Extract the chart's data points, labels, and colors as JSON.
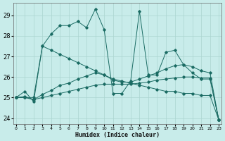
{
  "xlabel": "Humidex (Indice chaleur)",
  "xlim": [
    -0.3,
    23.3
  ],
  "ylim": [
    23.7,
    29.6
  ],
  "yticks": [
    24,
    25,
    26,
    27,
    28,
    29
  ],
  "xticks": [
    0,
    1,
    2,
    3,
    4,
    5,
    6,
    7,
    8,
    9,
    10,
    11,
    12,
    13,
    14,
    15,
    16,
    17,
    18,
    19,
    20,
    21,
    22,
    23
  ],
  "bg_color": "#c8ecea",
  "grid_color": "#aad4d0",
  "line_color": "#1a6b63",
  "series": [
    {
      "x": [
        0,
        1,
        2,
        3,
        4,
        5,
        6,
        7,
        8,
        9,
        10,
        11,
        12,
        13,
        14,
        15,
        16,
        17,
        18,
        19,
        20,
        21,
        22,
        23
      ],
      "y": [
        25.0,
        25.3,
        24.8,
        27.5,
        28.1,
        28.5,
        28.5,
        28.7,
        28.4,
        29.3,
        28.3,
        25.2,
        25.2,
        25.8,
        29.2,
        26.1,
        26.1,
        27.2,
        27.3,
        26.6,
        26.2,
        25.9,
        25.9,
        23.9
      ]
    },
    {
      "x": [
        0,
        1,
        2,
        3,
        4,
        5,
        6,
        7,
        8,
        9,
        10,
        11,
        12,
        13,
        14,
        15,
        16,
        17,
        18,
        19,
        20,
        21,
        22,
        23
      ],
      "y": [
        25.0,
        25.0,
        25.0,
        27.5,
        27.3,
        27.1,
        26.9,
        26.7,
        26.5,
        26.3,
        26.1,
        25.9,
        25.8,
        25.7,
        25.6,
        25.5,
        25.4,
        25.3,
        25.3,
        25.2,
        25.2,
        25.1,
        25.1,
        23.9
      ]
    },
    {
      "x": [
        0,
        1,
        2,
        3,
        4,
        5,
        6,
        7,
        8,
        9,
        10,
        11,
        12,
        13,
        14,
        15,
        16,
        17,
        18,
        19,
        20,
        21,
        22,
        23
      ],
      "y": [
        25.0,
        25.0,
        24.9,
        25.0,
        25.1,
        25.2,
        25.3,
        25.4,
        25.5,
        25.6,
        25.65,
        25.65,
        25.65,
        25.65,
        25.7,
        25.75,
        25.85,
        25.9,
        25.95,
        26.0,
        26.0,
        25.95,
        25.95,
        23.9
      ]
    },
    {
      "x": [
        0,
        1,
        2,
        3,
        4,
        5,
        6,
        7,
        8,
        9,
        10,
        11,
        12,
        13,
        14,
        15,
        16,
        17,
        18,
        19,
        20,
        21,
        22,
        23
      ],
      "y": [
        25.0,
        25.05,
        24.9,
        25.15,
        25.35,
        25.6,
        25.7,
        25.9,
        26.05,
        26.2,
        26.1,
        25.85,
        25.75,
        25.75,
        25.9,
        26.05,
        26.2,
        26.4,
        26.55,
        26.6,
        26.5,
        26.3,
        26.2,
        23.9
      ]
    }
  ]
}
